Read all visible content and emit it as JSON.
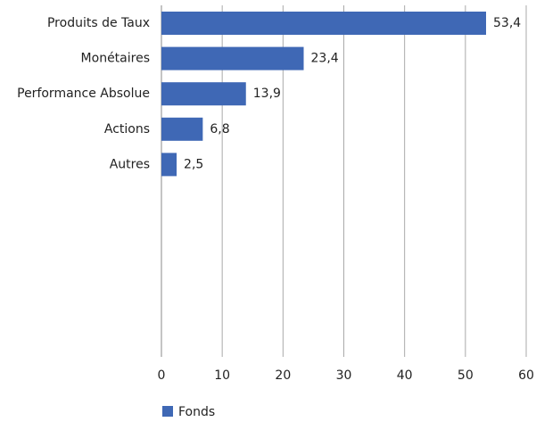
{
  "chart_data": {
    "type": "hbar",
    "categories": [
      "Produits de Taux",
      "Monétaires",
      "Performance Absolue",
      "Actions",
      "Autres"
    ],
    "series": [
      {
        "name": "Fonds",
        "color": "#3f68b5",
        "values": [
          53.4,
          23.4,
          13.9,
          6.8,
          2.5
        ],
        "value_labels": [
          "53,4",
          "23,4",
          "13,9",
          "6,8",
          "2,5"
        ]
      }
    ],
    "xlim": [
      0,
      60
    ],
    "xticks": [
      0,
      10,
      20,
      30,
      40,
      50,
      60
    ],
    "grid": true,
    "legend": "bottom"
  }
}
